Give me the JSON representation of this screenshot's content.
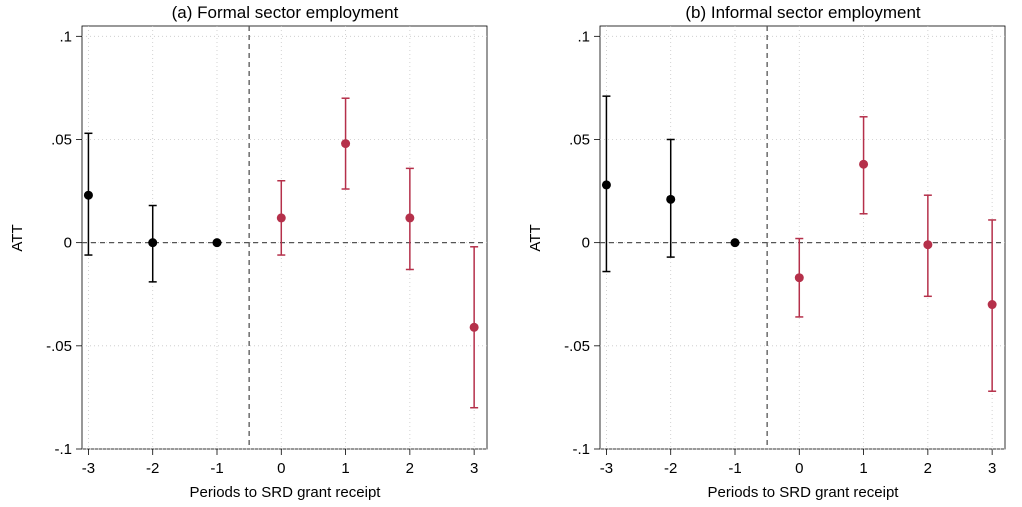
{
  "chart_data": [
    {
      "type": "scatter",
      "title": "(a) Formal sector employment",
      "xlabel": "Periods to SRD grant receipt",
      "ylabel": "ATT",
      "xlim": [
        -3.1,
        3.2
      ],
      "ylim": [
        -0.1,
        0.105
      ],
      "x_ticks": [
        "-3",
        "-2",
        "-1",
        "0",
        "1",
        "2",
        "3"
      ],
      "y_ticks": [
        ".1",
        ".05",
        "0",
        "-.05",
        "-.1"
      ],
      "grid": true,
      "reference_lines": {
        "y": 0,
        "x": -0.5
      },
      "series": [
        {
          "color": "#000000",
          "points": [
            {
              "x": -3,
              "y": 0.023,
              "lo": -0.006,
              "hi": 0.053
            },
            {
              "x": -2,
              "y": 0.0,
              "lo": -0.019,
              "hi": 0.018
            },
            {
              "x": -1,
              "y": 0.0,
              "lo": 0.0,
              "hi": 0.0
            }
          ]
        },
        {
          "color": "#b5304a",
          "points": [
            {
              "x": 0,
              "y": 0.012,
              "lo": -0.006,
              "hi": 0.03
            },
            {
              "x": 1,
              "y": 0.048,
              "lo": 0.026,
              "hi": 0.07
            },
            {
              "x": 2,
              "y": 0.012,
              "lo": -0.013,
              "hi": 0.036
            },
            {
              "x": 3,
              "y": -0.041,
              "lo": -0.08,
              "hi": -0.002
            }
          ]
        }
      ]
    },
    {
      "type": "scatter",
      "title": "(b) Informal sector employment",
      "xlabel": "Periods to SRD grant receipt",
      "ylabel": "ATT",
      "xlim": [
        -3.1,
        3.2
      ],
      "ylim": [
        -0.1,
        0.105
      ],
      "x_ticks": [
        "-3",
        "-2",
        "-1",
        "0",
        "1",
        "2",
        "3"
      ],
      "y_ticks": [
        ".1",
        ".05",
        "0",
        "-.05",
        "-.1"
      ],
      "grid": true,
      "reference_lines": {
        "y": 0,
        "x": -0.5
      },
      "series": [
        {
          "color": "#000000",
          "points": [
            {
              "x": -3,
              "y": 0.028,
              "lo": -0.014,
              "hi": 0.071
            },
            {
              "x": -2,
              "y": 0.021,
              "lo": -0.007,
              "hi": 0.05
            },
            {
              "x": -1,
              "y": 0.0,
              "lo": 0.0,
              "hi": 0.0
            }
          ]
        },
        {
          "color": "#b5304a",
          "points": [
            {
              "x": 0,
              "y": -0.017,
              "lo": -0.036,
              "hi": 0.002
            },
            {
              "x": 1,
              "y": 0.038,
              "lo": 0.014,
              "hi": 0.061
            },
            {
              "x": 2,
              "y": -0.001,
              "lo": -0.026,
              "hi": 0.023
            },
            {
              "x": 3,
              "y": -0.03,
              "lo": -0.072,
              "hi": 0.011
            }
          ]
        }
      ]
    }
  ]
}
